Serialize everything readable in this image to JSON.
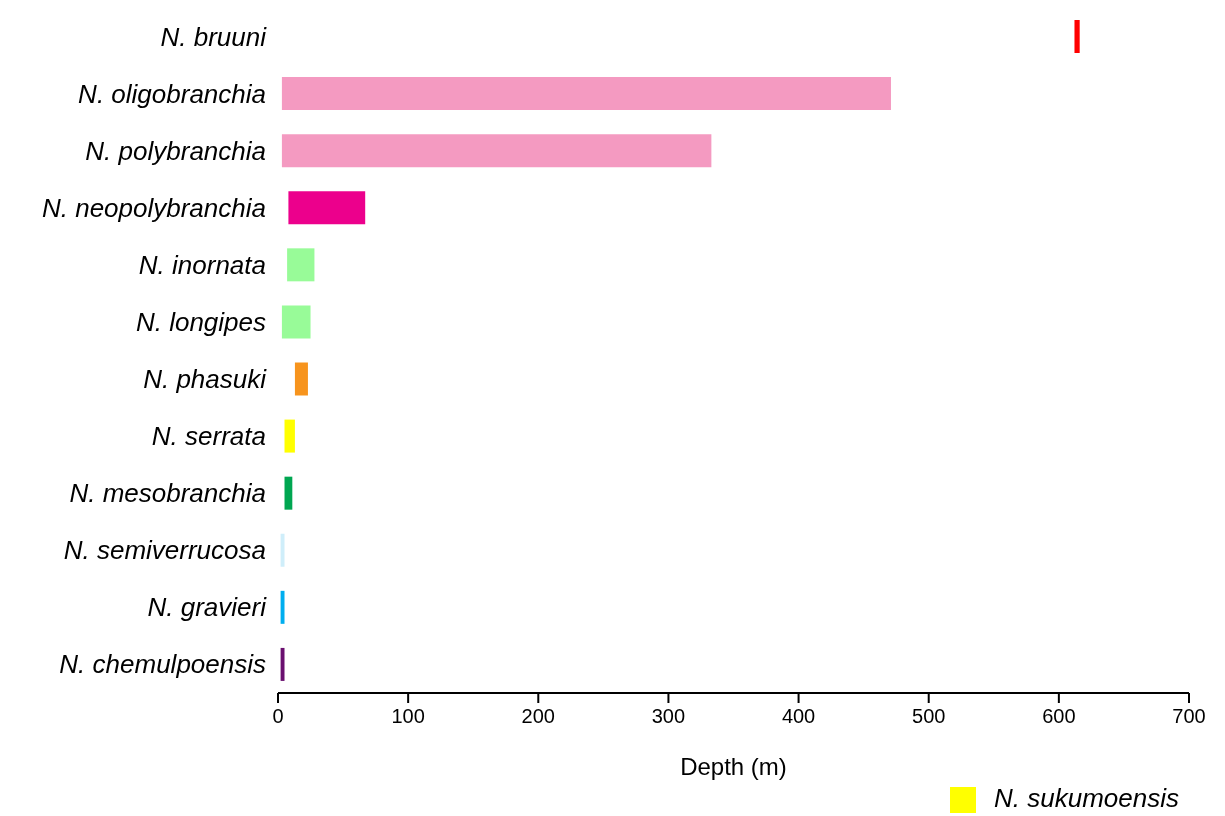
{
  "chart_data": {
    "type": "bar",
    "orientation": "horizontal",
    "xlabel": "Depth (m)",
    "categories": [
      "N. bruuni",
      "N. oligobranchia",
      "N. polybranchia",
      "N. neopolybranchia",
      "N. inornata",
      "N. longipes",
      "N. phasuki",
      "N. serrata",
      "N. mesobranchia",
      "N. semiverrucosa",
      "N. gravieri",
      "N. chemulpoensis"
    ],
    "series": [
      {
        "values": [
          4,
          468,
          330,
          59,
          21,
          22,
          10,
          8,
          6,
          3,
          3,
          3
        ],
        "base": [
          612,
          3,
          3,
          8,
          7,
          3,
          13,
          5,
          5,
          2,
          2,
          2
        ],
        "colors": [
          "#ff0000",
          "#f49ac1",
          "#f49ac1",
          "#ec008c",
          "#98fb98",
          "#98fb98",
          "#f7941d",
          "#ffff00",
          "#00a651",
          "#cfeefa",
          "#00aeef",
          "#6a0f6f"
        ]
      },
      {
        "name": "N. sukumoensis",
        "color": "#ffff00",
        "values": [
          null,
          null,
          null,
          null,
          null,
          null,
          null,
          null,
          null,
          null,
          null,
          null
        ]
      }
    ],
    "xlim": [
      0,
      700
    ],
    "xticks": [
      0,
      100,
      200,
      300,
      400,
      500,
      600,
      700
    ],
    "legend": "bottom right"
  }
}
